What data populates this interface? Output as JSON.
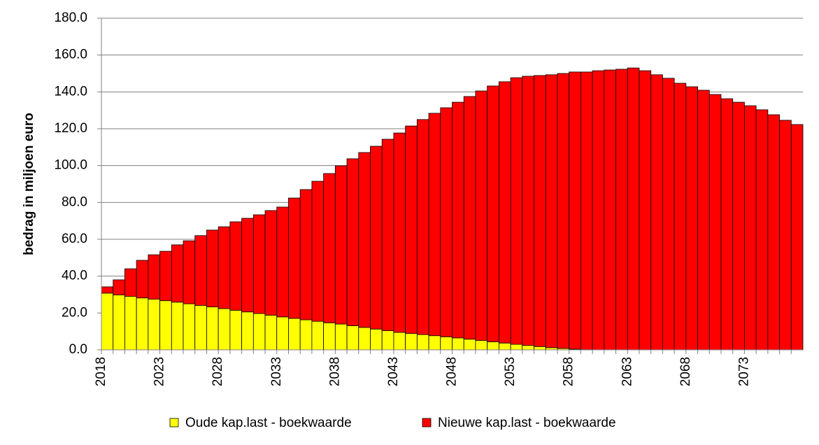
{
  "chart_data": {
    "type": "stacked_bar",
    "y_label": "bedrag in miljoen euro",
    "categories": [
      "2018",
      null,
      null,
      null,
      null,
      "2023",
      null,
      null,
      null,
      null,
      "2028",
      null,
      null,
      null,
      null,
      "2033",
      null,
      null,
      null,
      null,
      "2038",
      null,
      null,
      null,
      null,
      "2043",
      null,
      null,
      null,
      null,
      "2048",
      null,
      null,
      null,
      null,
      "2053",
      null,
      null,
      null,
      null,
      "2058",
      null,
      null,
      null,
      null,
      "2063",
      null,
      null,
      null,
      null,
      "2068",
      null,
      null,
      null,
      null,
      "2073",
      null,
      null,
      null,
      null
    ],
    "series": [
      {
        "name": "Oude kap.last - boekwaarde",
        "color": "#ffff00",
        "values": [
          30.8,
          29.8,
          29.0,
          28.2,
          27.5,
          26.7,
          25.9,
          25.0,
          24.1,
          23.3,
          22.4,
          21.5,
          20.6,
          19.7,
          18.8,
          17.9,
          17.1,
          16.3,
          15.5,
          14.7,
          14.0,
          13.1,
          12.2,
          11.3,
          10.4,
          9.5,
          8.9,
          8.3,
          7.7,
          7.1,
          6.5,
          5.8,
          5.1,
          4.4,
          3.7,
          3.0,
          2.4,
          1.8,
          1.2,
          0.8,
          0.4,
          0.1,
          0,
          0,
          0,
          0,
          0,
          0,
          0,
          0,
          0,
          0,
          0,
          0,
          0,
          0,
          0,
          0,
          0,
          0
        ]
      },
      {
        "name": "Nieuwe kap.last - boekwaarde",
        "color": "#ff0000",
        "values": [
          3.4,
          8.2,
          15.0,
          20.4,
          24.1,
          26.8,
          31.1,
          34.2,
          37.9,
          41.7,
          44.4,
          48.0,
          50.8,
          53.6,
          56.8,
          59.6,
          65.3,
          70.7,
          76.0,
          81.0,
          85.9,
          90.6,
          94.9,
          99.2,
          103.9,
          108.2,
          112.6,
          116.7,
          120.7,
          124.3,
          127.9,
          131.7,
          135.4,
          138.8,
          141.8,
          144.7,
          146.1,
          147.1,
          148.1,
          149.2,
          150.4,
          150.7,
          151.5,
          151.9,
          152.3,
          153.0,
          151.5,
          149.3,
          147.4,
          144.7,
          142.8,
          140.9,
          138.6,
          136.3,
          134.4,
          132.5,
          130.3,
          127.6,
          124.6,
          122.3
        ]
      }
    ],
    "ylim": [
      0,
      180
    ],
    "yticks": [
      {
        "value": 0,
        "label": "0.0"
      },
      {
        "value": 20,
        "label": "20.0"
      },
      {
        "value": 40,
        "label": "40.0"
      },
      {
        "value": 60,
        "label": "60.0"
      },
      {
        "value": 80,
        "label": "80.0"
      },
      {
        "value": 100,
        "label": "100.0"
      },
      {
        "value": 120,
        "label": "120.0"
      },
      {
        "value": 140,
        "label": "140.0"
      },
      {
        "value": 160,
        "label": "160.0"
      },
      {
        "value": 180,
        "label": "180.0"
      }
    ],
    "grid": true,
    "legend": "bottom"
  }
}
